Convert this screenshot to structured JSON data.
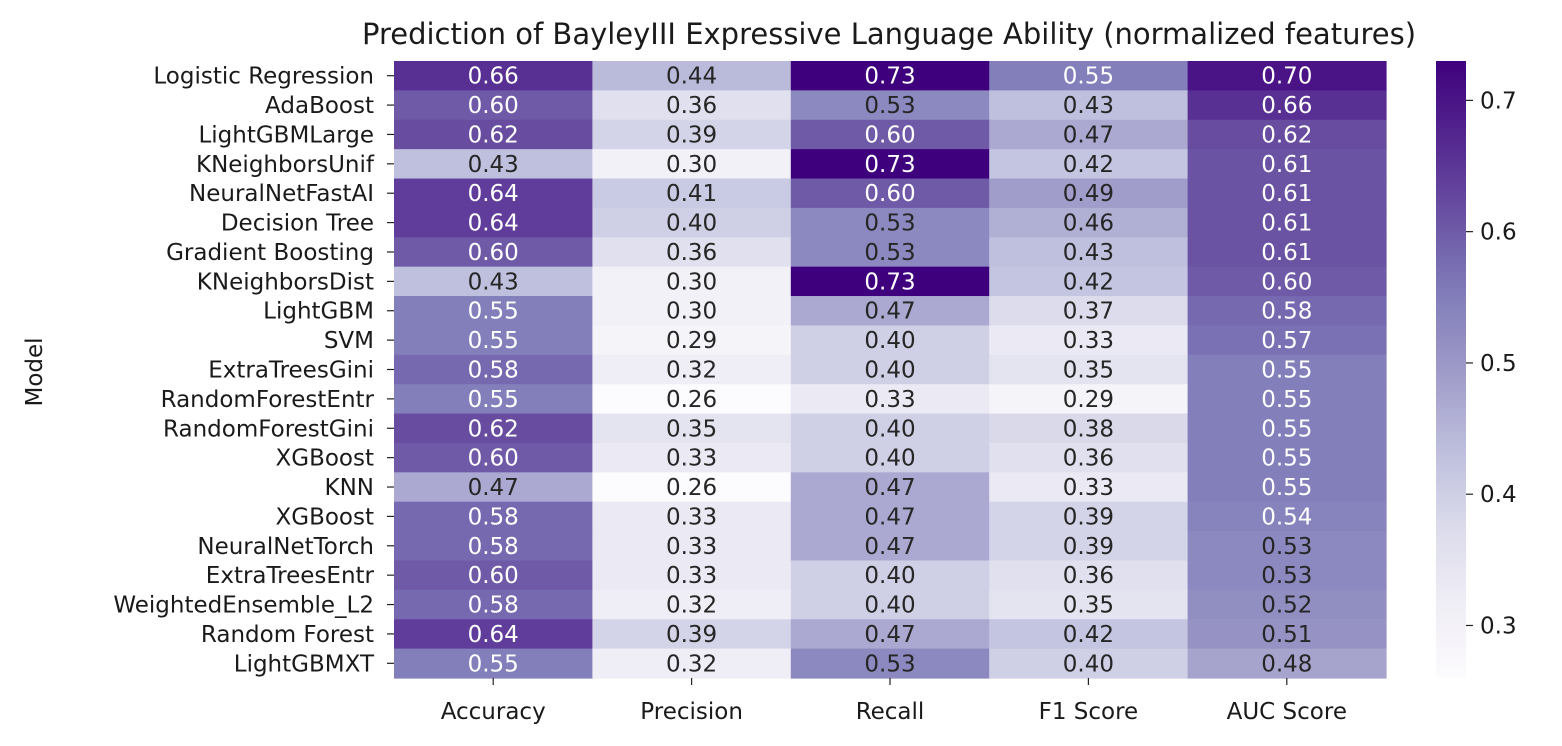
{
  "chart_data": {
    "type": "heatmap",
    "title": "Prediction of BayleyIII Expressive Language Ability (normalized features)",
    "ylabel": "Model",
    "xlabel": "",
    "columns": [
      "Accuracy",
      "Precision",
      "Recall",
      "F1 Score",
      "AUC Score"
    ],
    "rows": [
      "Logistic Regression",
      "AdaBoost",
      "LightGBMLarge",
      "KNeighborsUnif",
      "NeuralNetFastAI",
      "Decision Tree",
      "Gradient Boosting",
      "KNeighborsDist",
      "LightGBM",
      "SVM",
      "ExtraTreesGini",
      "RandomForestEntr",
      "RandomForestGini",
      "XGBoost",
      "KNN",
      "XGBoost",
      "NeuralNetTorch",
      "ExtraTreesEntr",
      "WeightedEnsemble_L2",
      "Random Forest",
      "LightGBMXT"
    ],
    "values": [
      [
        0.66,
        0.44,
        0.73,
        0.55,
        0.7
      ],
      [
        0.6,
        0.36,
        0.53,
        0.43,
        0.66
      ],
      [
        0.62,
        0.39,
        0.6,
        0.47,
        0.62
      ],
      [
        0.43,
        0.3,
        0.73,
        0.42,
        0.61
      ],
      [
        0.64,
        0.41,
        0.6,
        0.49,
        0.61
      ],
      [
        0.64,
        0.4,
        0.53,
        0.46,
        0.61
      ],
      [
        0.6,
        0.36,
        0.53,
        0.43,
        0.61
      ],
      [
        0.43,
        0.3,
        0.73,
        0.42,
        0.6
      ],
      [
        0.55,
        0.3,
        0.47,
        0.37,
        0.58
      ],
      [
        0.55,
        0.29,
        0.4,
        0.33,
        0.57
      ],
      [
        0.58,
        0.32,
        0.4,
        0.35,
        0.55
      ],
      [
        0.55,
        0.26,
        0.33,
        0.29,
        0.55
      ],
      [
        0.62,
        0.35,
        0.4,
        0.38,
        0.55
      ],
      [
        0.6,
        0.33,
        0.4,
        0.36,
        0.55
      ],
      [
        0.47,
        0.26,
        0.47,
        0.33,
        0.55
      ],
      [
        0.58,
        0.33,
        0.47,
        0.39,
        0.54
      ],
      [
        0.58,
        0.33,
        0.47,
        0.39,
        0.53
      ],
      [
        0.6,
        0.33,
        0.4,
        0.36,
        0.53
      ],
      [
        0.58,
        0.32,
        0.4,
        0.35,
        0.52
      ],
      [
        0.64,
        0.39,
        0.47,
        0.42,
        0.51
      ],
      [
        0.55,
        0.32,
        0.53,
        0.4,
        0.48
      ]
    ],
    "value_format": "0.00",
    "colormap": "Purples",
    "colorbar": {
      "range": [
        0.26,
        0.73
      ],
      "ticks": [
        "0.3",
        "0.4",
        "0.5",
        "0.6",
        "0.7"
      ]
    }
  }
}
